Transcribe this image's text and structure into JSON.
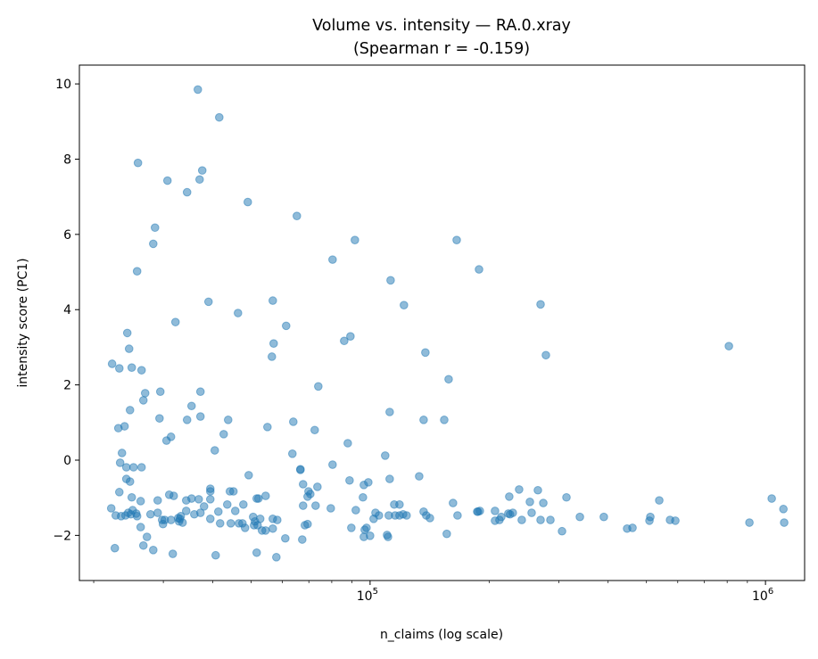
{
  "chart_data": {
    "type": "scatter",
    "title": "Volume vs. intensity — RA.0.xray",
    "subtitle": "(Spearman r = -0.159)",
    "xlabel": "n_claims (log scale)",
    "ylabel": "intensity score (PC1)",
    "x_scale": "log",
    "xlim": [
      18400,
      1256000
    ],
    "ylim": [
      -3.2,
      10.5
    ],
    "x_ticks": [
      {
        "value": 100000,
        "base": "10",
        "exp": "5"
      },
      {
        "value": 1000000,
        "base": "10",
        "exp": "6"
      }
    ],
    "y_ticks": [
      -2,
      0,
      2,
      4,
      6,
      8,
      10
    ],
    "grid": false,
    "legend": "none",
    "marker_color": "#1f77b4",
    "marker_alpha": 0.5,
    "points": [
      [
        36680,
        9.85
      ],
      [
        41550,
        9.11
      ],
      [
        25880,
        7.9
      ],
      [
        37630,
        7.7
      ],
      [
        30730,
        7.43
      ],
      [
        37060,
        7.46
      ],
      [
        34450,
        7.12
      ],
      [
        49060,
        6.86
      ],
      [
        28580,
        6.18
      ],
      [
        65290,
        6.49
      ],
      [
        91540,
        5.85
      ],
      [
        165600,
        5.85
      ],
      [
        28290,
        5.75
      ],
      [
        80380,
        5.33
      ],
      [
        188600,
        5.07
      ],
      [
        25750,
        5.02
      ],
      [
        112700,
        4.78
      ],
      [
        121800,
        4.12
      ],
      [
        269900,
        4.14
      ],
      [
        39030,
        4.21
      ],
      [
        56750,
        4.24
      ],
      [
        46340,
        3.91
      ],
      [
        32200,
        3.67
      ],
      [
        61340,
        3.57
      ],
      [
        24320,
        3.38
      ],
      [
        89190,
        3.29
      ],
      [
        86010,
        3.17
      ],
      [
        57040,
        3.1
      ],
      [
        808100,
        3.03
      ],
      [
        24580,
        2.96
      ],
      [
        138000,
        2.86
      ],
      [
        278400,
        2.79
      ],
      [
        56450,
        2.75
      ],
      [
        22260,
        2.56
      ],
      [
        24960,
        2.46
      ],
      [
        23220,
        2.44
      ],
      [
        26430,
        2.39
      ],
      [
        158000,
        2.15
      ],
      [
        73970,
        1.96
      ],
      [
        37240,
        1.82
      ],
      [
        26990,
        1.78
      ],
      [
        29480,
        1.82
      ],
      [
        26710,
        1.59
      ],
      [
        35360,
        1.44
      ],
      [
        24710,
        1.33
      ],
      [
        112100,
        1.28
      ],
      [
        29340,
        1.11
      ],
      [
        34450,
        1.07
      ],
      [
        37240,
        1.16
      ],
      [
        43760,
        1.07
      ],
      [
        63950,
        1.02
      ],
      [
        136600,
        1.07
      ],
      [
        154000,
        1.07
      ],
      [
        23090,
        0.85
      ],
      [
        23940,
        0.9
      ],
      [
        55010,
        0.88
      ],
      [
        72440,
        0.8
      ],
      [
        31370,
        0.62
      ],
      [
        30560,
        0.52
      ],
      [
        42640,
        0.69
      ],
      [
        87820,
        0.45
      ],
      [
        40480,
        0.26
      ],
      [
        23580,
        0.19
      ],
      [
        109200,
        0.12
      ],
      [
        63610,
        0.17
      ],
      [
        23330,
        -0.07
      ],
      [
        80380,
        -0.12
      ],
      [
        24190,
        -0.19
      ],
      [
        25220,
        -0.19
      ],
      [
        26430,
        -0.19
      ],
      [
        66650,
        -0.24
      ],
      [
        66650,
        -0.26
      ],
      [
        133100,
        -0.43
      ],
      [
        49320,
        -0.4
      ],
      [
        24190,
        -0.5
      ],
      [
        24710,
        -0.57
      ],
      [
        88740,
        -0.54
      ],
      [
        112100,
        -0.5
      ],
      [
        98970,
        -0.59
      ],
      [
        96430,
        -0.66
      ],
      [
        67700,
        -0.64
      ],
      [
        73590,
        -0.71
      ],
      [
        39440,
        -0.76
      ],
      [
        39440,
        -0.83
      ],
      [
        45130,
        -0.83
      ],
      [
        44210,
        -0.83
      ],
      [
        69870,
        -0.83
      ],
      [
        70600,
        -0.9
      ],
      [
        69500,
        -0.97
      ],
      [
        23220,
        -0.85
      ],
      [
        24960,
        -0.99
      ],
      [
        29030,
        -1.07
      ],
      [
        31870,
        -0.95
      ],
      [
        34280,
        -1.07
      ],
      [
        35360,
        -1.02
      ],
      [
        36870,
        -1.04
      ],
      [
        39440,
        -1.04
      ],
      [
        31050,
        -0.92
      ],
      [
        52200,
        -1.02
      ],
      [
        51670,
        -1.02
      ],
      [
        54430,
        -0.95
      ],
      [
        95930,
        -0.99
      ],
      [
        224900,
        -0.97
      ],
      [
        313800,
        -0.99
      ],
      [
        538700,
        -1.07
      ],
      [
        1037000,
        -1.02
      ],
      [
        162100,
        -1.14
      ],
      [
        238200,
        -0.78
      ],
      [
        265700,
        -0.8
      ],
      [
        253600,
        -1.11
      ],
      [
        274200,
        -1.14
      ],
      [
        115100,
        -1.18
      ],
      [
        118700,
        -1.18
      ],
      [
        43530,
        -1.18
      ],
      [
        47810,
        -1.18
      ],
      [
        26290,
        -1.09
      ],
      [
        67700,
        -1.21
      ],
      [
        72820,
        -1.21
      ],
      [
        38030,
        -1.23
      ],
      [
        45610,
        -1.35
      ],
      [
        92020,
        -1.33
      ],
      [
        79550,
        -1.28
      ],
      [
        22150,
        -1.28
      ],
      [
        256200,
        -1.4
      ],
      [
        229600,
        -1.4
      ],
      [
        223700,
        -1.42
      ],
      [
        189500,
        -1.35
      ],
      [
        187500,
        -1.37
      ],
      [
        207000,
        -1.35
      ],
      [
        166400,
        -1.47
      ],
      [
        136600,
        -1.37
      ],
      [
        138700,
        -1.47
      ],
      [
        118700,
        -1.47
      ],
      [
        115700,
        -1.47
      ],
      [
        121200,
        -1.44
      ],
      [
        123700,
        -1.47
      ],
      [
        105300,
        -1.47
      ],
      [
        102100,
        -1.56
      ],
      [
        103200,
        -1.4
      ],
      [
        141700,
        -1.54
      ],
      [
        111500,
        -1.47
      ],
      [
        22740,
        -1.47
      ],
      [
        23460,
        -1.49
      ],
      [
        24450,
        -1.4
      ],
      [
        24830,
        -1.44
      ],
      [
        25750,
        -1.49
      ],
      [
        25090,
        -1.33
      ],
      [
        25620,
        -1.42
      ],
      [
        27840,
        -1.44
      ],
      [
        24070,
        -1.47
      ],
      [
        29030,
        -1.4
      ],
      [
        32710,
        -1.54
      ],
      [
        33040,
        -1.56
      ],
      [
        32880,
        -1.63
      ],
      [
        35930,
        -1.44
      ],
      [
        34280,
        -1.35
      ],
      [
        33210,
        -1.49
      ],
      [
        33560,
        -1.66
      ],
      [
        37240,
        -1.4
      ],
      [
        41330,
        -1.37
      ],
      [
        39440,
        -1.56
      ],
      [
        44440,
        -1.68
      ],
      [
        46580,
        -1.68
      ],
      [
        47560,
        -1.68
      ],
      [
        50620,
        -1.51
      ],
      [
        51140,
        -1.63
      ],
      [
        52740,
        -1.56
      ],
      [
        51940,
        -1.73
      ],
      [
        56750,
        -1.56
      ],
      [
        58240,
        -1.59
      ],
      [
        56750,
        -1.82
      ],
      [
        69500,
        -1.7
      ],
      [
        68420,
        -1.73
      ],
      [
        29790,
        -1.59
      ],
      [
        29940,
        -1.7
      ],
      [
        30250,
        -1.59
      ],
      [
        26290,
        -1.78
      ],
      [
        31370,
        -1.59
      ],
      [
        48290,
        -1.8
      ],
      [
        50880,
        -1.73
      ],
      [
        53290,
        -1.87
      ],
      [
        41760,
        -1.68
      ],
      [
        54430,
        -1.87
      ],
      [
        89660,
        -1.8
      ],
      [
        97940,
        -1.8
      ],
      [
        96930,
        -1.85
      ],
      [
        339300,
        -1.51
      ],
      [
        285800,
        -1.59
      ],
      [
        186600,
        -1.37
      ],
      [
        212400,
        -1.59
      ],
      [
        214700,
        -1.51
      ],
      [
        226000,
        -1.44
      ],
      [
        207000,
        -1.61
      ],
      [
        241900,
        -1.59
      ],
      [
        269900,
        -1.59
      ],
      [
        390100,
        -1.51
      ],
      [
        511400,
        -1.51
      ],
      [
        508800,
        -1.61
      ],
      [
        573500,
        -1.59
      ],
      [
        591600,
        -1.61
      ],
      [
        910700,
        -1.66
      ],
      [
        1115000,
        -1.66
      ],
      [
        1110000,
        -1.3
      ],
      [
        446700,
        -1.82
      ],
      [
        461000,
        -1.8
      ],
      [
        305800,
        -1.89
      ],
      [
        156300,
        -1.96
      ],
      [
        96430,
        -2.04
      ],
      [
        111000,
        -2.04
      ],
      [
        110400,
        -1.99
      ],
      [
        27270,
        -2.04
      ],
      [
        61030,
        -2.08
      ],
      [
        67360,
        -2.11
      ],
      [
        100000,
        -2.01
      ],
      [
        22620,
        -2.34
      ],
      [
        28290,
        -2.39
      ],
      [
        26710,
        -2.27
      ],
      [
        31700,
        -2.49
      ],
      [
        51670,
        -2.46
      ],
      [
        40690,
        -2.53
      ],
      [
        57940,
        -2.58
      ]
    ]
  }
}
